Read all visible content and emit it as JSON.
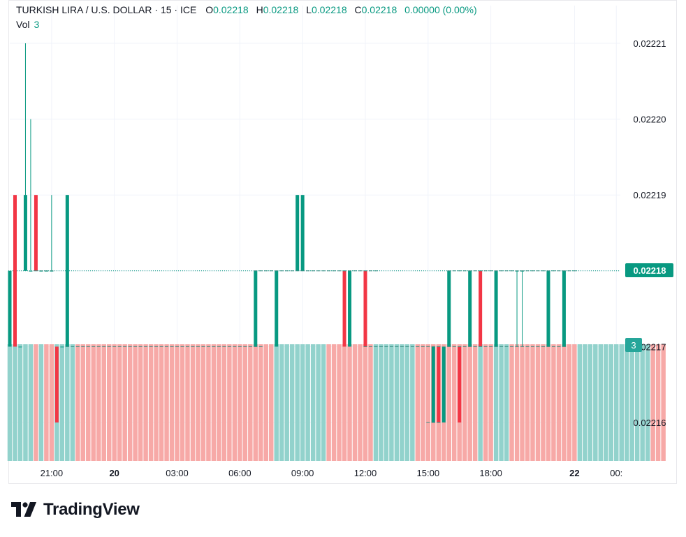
{
  "header": {
    "symbol": "TURKISH LIRA / U.S. DOLLAR · 15 · ICE",
    "o_label": "O",
    "o_value": "0.02218",
    "h_label": "H",
    "h_value": "0.02218",
    "l_label": "L",
    "l_value": "0.02218",
    "c_label": "C",
    "c_value": "0.02218",
    "change": "0.00000 (0.00%)",
    "vol_label": "Vol",
    "vol_value": "3"
  },
  "colors": {
    "up": "#089981",
    "down": "#f23645",
    "vol_up": "#92d2cc",
    "vol_down": "#f7a9a7",
    "grid": "#f0f3fa",
    "text": "#131722"
  },
  "brand": {
    "name": "TradingView"
  },
  "chart_data": {
    "type": "candlestick",
    "title": "TURKISH LIRA / U.S. DOLLAR · 15 · ICE",
    "y_ticks": [
      "0.02221",
      "0.02220",
      "0.02219",
      "0.02218",
      "0.02217",
      "0.02216"
    ],
    "x_ticks": [
      {
        "label": "21:00",
        "hours": 21
      },
      {
        "label": "20",
        "hours": 24,
        "bold": true
      },
      {
        "label": "03:00",
        "hours": 27
      },
      {
        "label": "06:00",
        "hours": 30
      },
      {
        "label": "09:00",
        "hours": 33
      },
      {
        "label": "12:00",
        "hours": 36
      },
      {
        "label": "15:00",
        "hours": 39
      },
      {
        "label": "18:00",
        "hours": 42
      },
      {
        "label": "22",
        "hours": 46,
        "bold": true
      },
      {
        "label": "00:",
        "hours": 48
      }
    ],
    "last_price": "0.02218",
    "last_volume": "3",
    "ylim": [
      0.021755,
      0.022225
    ],
    "xlim_hours": [
      19.0,
      48.25
    ],
    "candles": [
      {
        "t": 19.0,
        "o": 0.02217,
        "h": 0.02218,
        "l": 0.02217,
        "c": 0.02218,
        "v": "up"
      },
      {
        "t": 19.25,
        "o": 0.02219,
        "h": 0.02219,
        "l": 0.02217,
        "c": 0.02217,
        "v": "down"
      },
      {
        "t": 19.5,
        "o": 0.02217,
        "h": 0.02217,
        "l": 0.02217,
        "c": 0.02217,
        "v": "up"
      },
      {
        "t": 19.75,
        "o": 0.02218,
        "h": 0.02221,
        "l": 0.02218,
        "c": 0.02219,
        "v": "up"
      },
      {
        "t": 20.0,
        "o": 0.02218,
        "h": 0.0222,
        "l": 0.02218,
        "c": 0.02218,
        "v": "up"
      },
      {
        "t": 20.25,
        "o": 0.02219,
        "h": 0.02219,
        "l": 0.02218,
        "c": 0.02218,
        "v": "down"
      },
      {
        "t": 20.5,
        "o": 0.02218,
        "h": 0.02218,
        "l": 0.02218,
        "c": 0.02218,
        "v": "up"
      },
      {
        "t": 20.75,
        "o": 0.02218,
        "h": 0.02218,
        "l": 0.02218,
        "c": 0.02218,
        "v": "up"
      },
      {
        "t": 21.0,
        "o": 0.02218,
        "h": 0.02219,
        "l": 0.02218,
        "c": 0.02218,
        "v": "up"
      },
      {
        "t": 21.25,
        "o": 0.02217,
        "h": 0.02217,
        "l": 0.02216,
        "c": 0.02216,
        "v": "up"
      },
      {
        "t": 21.5,
        "o": 0.02217,
        "h": 0.02217,
        "l": 0.02217,
        "c": 0.02217,
        "v": "down"
      },
      {
        "t": 21.75,
        "o": 0.02217,
        "h": 0.02219,
        "l": 0.02217,
        "c": 0.02219,
        "v": "up"
      },
      {
        "t": 30.75,
        "o": 0.02217,
        "h": 0.02218,
        "l": 0.02217,
        "c": 0.02218,
        "v": "up"
      },
      {
        "t": 31.75,
        "o": 0.02217,
        "h": 0.02218,
        "l": 0.02217,
        "c": 0.02218,
        "v": "up"
      },
      {
        "t": 32.75,
        "o": 0.02218,
        "h": 0.02219,
        "l": 0.02218,
        "c": 0.02219,
        "v": "up"
      },
      {
        "t": 33.0,
        "o": 0.02218,
        "h": 0.02219,
        "l": 0.02218,
        "c": 0.02219,
        "v": "up"
      },
      {
        "t": 35.0,
        "o": 0.02218,
        "h": 0.02218,
        "l": 0.02217,
        "c": 0.02217,
        "v": "down"
      },
      {
        "t": 35.25,
        "o": 0.02217,
        "h": 0.02218,
        "l": 0.02217,
        "c": 0.02218,
        "v": "up"
      },
      {
        "t": 36.0,
        "o": 0.02218,
        "h": 0.02218,
        "l": 0.02217,
        "c": 0.02217,
        "v": "down"
      },
      {
        "t": 39.25,
        "o": 0.02216,
        "h": 0.02217,
        "l": 0.02216,
        "c": 0.02217,
        "v": "up"
      },
      {
        "t": 39.5,
        "o": 0.02217,
        "h": 0.02217,
        "l": 0.02216,
        "c": 0.02216,
        "v": "down"
      },
      {
        "t": 39.75,
        "o": 0.02216,
        "h": 0.02217,
        "l": 0.02216,
        "c": 0.02217,
        "v": "up"
      },
      {
        "t": 40.0,
        "o": 0.02217,
        "h": 0.02218,
        "l": 0.02217,
        "c": 0.02218,
        "v": "up"
      },
      {
        "t": 40.5,
        "o": 0.02217,
        "h": 0.02217,
        "l": 0.02216,
        "c": 0.02216,
        "v": "down"
      },
      {
        "t": 41.0,
        "o": 0.02217,
        "h": 0.02218,
        "l": 0.02217,
        "c": 0.02218,
        "v": "up"
      },
      {
        "t": 41.5,
        "o": 0.02218,
        "h": 0.02218,
        "l": 0.02217,
        "c": 0.02217,
        "v": "down"
      },
      {
        "t": 42.25,
        "o": 0.02217,
        "h": 0.02218,
        "l": 0.02217,
        "c": 0.02218,
        "v": "up"
      },
      {
        "t": 43.25,
        "o": 0.02218,
        "h": 0.02218,
        "l": 0.02217,
        "c": 0.02218,
        "v": "up"
      },
      {
        "t": 43.5,
        "o": 0.02218,
        "h": 0.02218,
        "l": 0.02217,
        "c": 0.02218,
        "v": "up"
      },
      {
        "t": 44.75,
        "o": 0.02217,
        "h": 0.02218,
        "l": 0.02217,
        "c": 0.02218,
        "v": "up"
      },
      {
        "t": 45.5,
        "o": 0.02217,
        "h": 0.02218,
        "l": 0.02217,
        "c": 0.02218,
        "v": "up"
      }
    ],
    "volume": {
      "start_hours": 19.0,
      "step_hours": 0.25,
      "colors": "uuuuududduuuudddddddddddddddddddddddddddddddddddddduuuuuuuuuuddddddddduuuuuuuuddddddddddddudduuuddddddddddddduuuuuuuuuuuuuuddd",
      "value": 3,
      "ylim": [
        0,
        3.5
      ]
    },
    "grid": true
  }
}
